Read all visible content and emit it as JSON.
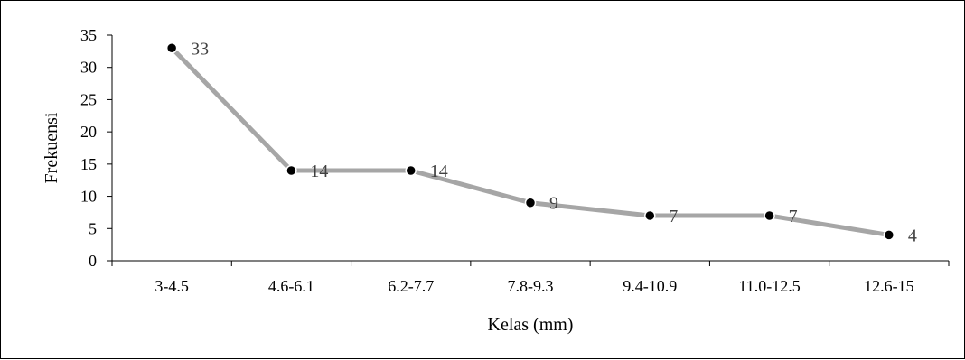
{
  "chart_data": {
    "type": "line",
    "title": "",
    "xlabel": "Kelas (mm)",
    "ylabel": "Frekuensi",
    "categories": [
      "3-4.5",
      "4.6-6.1",
      "6.2-7.7",
      "7.8-9.3",
      "9.4-10.9",
      "11.0-12.5",
      "12.6-15"
    ],
    "series": [
      {
        "values": [
          33,
          14,
          14,
          9,
          7,
          7,
          4
        ]
      }
    ],
    "data_labels": [
      "33",
      "14",
      "14",
      "9",
      "7",
      "7",
      "4"
    ],
    "yticks": [
      0,
      5,
      10,
      15,
      20,
      25,
      30,
      35
    ],
    "ylim": [
      0,
      35
    ],
    "grid": false,
    "legend": "none",
    "colors": {
      "line": "#a6a6a6",
      "marker": "#000000",
      "label": "#404040",
      "axis": "#000000"
    }
  }
}
